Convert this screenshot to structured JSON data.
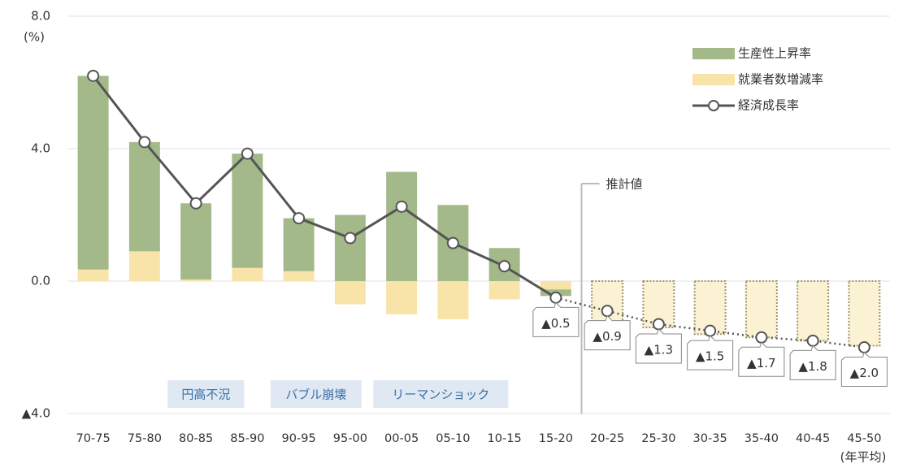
{
  "chart_data": {
    "type": "bar",
    "y_unit": "(%)",
    "x_unit": "(年平均)",
    "categories": [
      "70-75",
      "75-80",
      "80-85",
      "85-90",
      "90-95",
      "95-00",
      "00-05",
      "05-10",
      "10-15",
      "15-20",
      "20-25",
      "25-30",
      "30-35",
      "35-40",
      "40-45",
      "45-50"
    ],
    "series": [
      {
        "name": "生産性上昇率",
        "color": "#a3b98a",
        "values": [
          5.85,
          3.3,
          2.3,
          3.45,
          1.6,
          2.0,
          3.3,
          2.3,
          1.0,
          -0.2,
          null,
          null,
          null,
          null,
          null,
          null
        ]
      },
      {
        "name": "就業者数増減率",
        "color": "#f8e3a8",
        "values": [
          0.35,
          0.9,
          0.05,
          0.4,
          0.3,
          -0.7,
          -1.0,
          -1.15,
          -0.55,
          -0.25,
          -1.3,
          -1.4,
          -1.6,
          -1.7,
          -1.8,
          -1.95
        ]
      },
      {
        "name": "経済成長率",
        "type": "line",
        "color": "#555555",
        "values": [
          6.2,
          4.2,
          2.35,
          3.85,
          1.9,
          1.3,
          2.25,
          1.15,
          0.45,
          -0.5,
          -0.9,
          -1.3,
          -1.5,
          -1.7,
          -1.8,
          -2.0
        ],
        "value_labels": [
          null,
          null,
          null,
          null,
          null,
          null,
          null,
          null,
          null,
          "▲0.5",
          "▲0.9",
          "▲1.3",
          "▲1.5",
          "▲1.7",
          "▲1.8",
          "▲2.0"
        ]
      }
    ],
    "ylim": [
      -4,
      8
    ],
    "yticks": [
      {
        "value": 8,
        "label": "8.0"
      },
      {
        "value": 4,
        "label": "4.0"
      },
      {
        "value": 0,
        "label": "0.0"
      },
      {
        "value": -4,
        "label": "▲4.0"
      }
    ],
    "grid": true,
    "legend": "upper right",
    "estimate_label": "推計値",
    "estimate_from": "20-25",
    "annotations": [
      {
        "text": "円高不況",
        "at": "80-85"
      },
      {
        "text": "バブル崩壊",
        "at": "90-95"
      },
      {
        "text": "リーマンショック",
        "at": "00-05"
      }
    ]
  }
}
